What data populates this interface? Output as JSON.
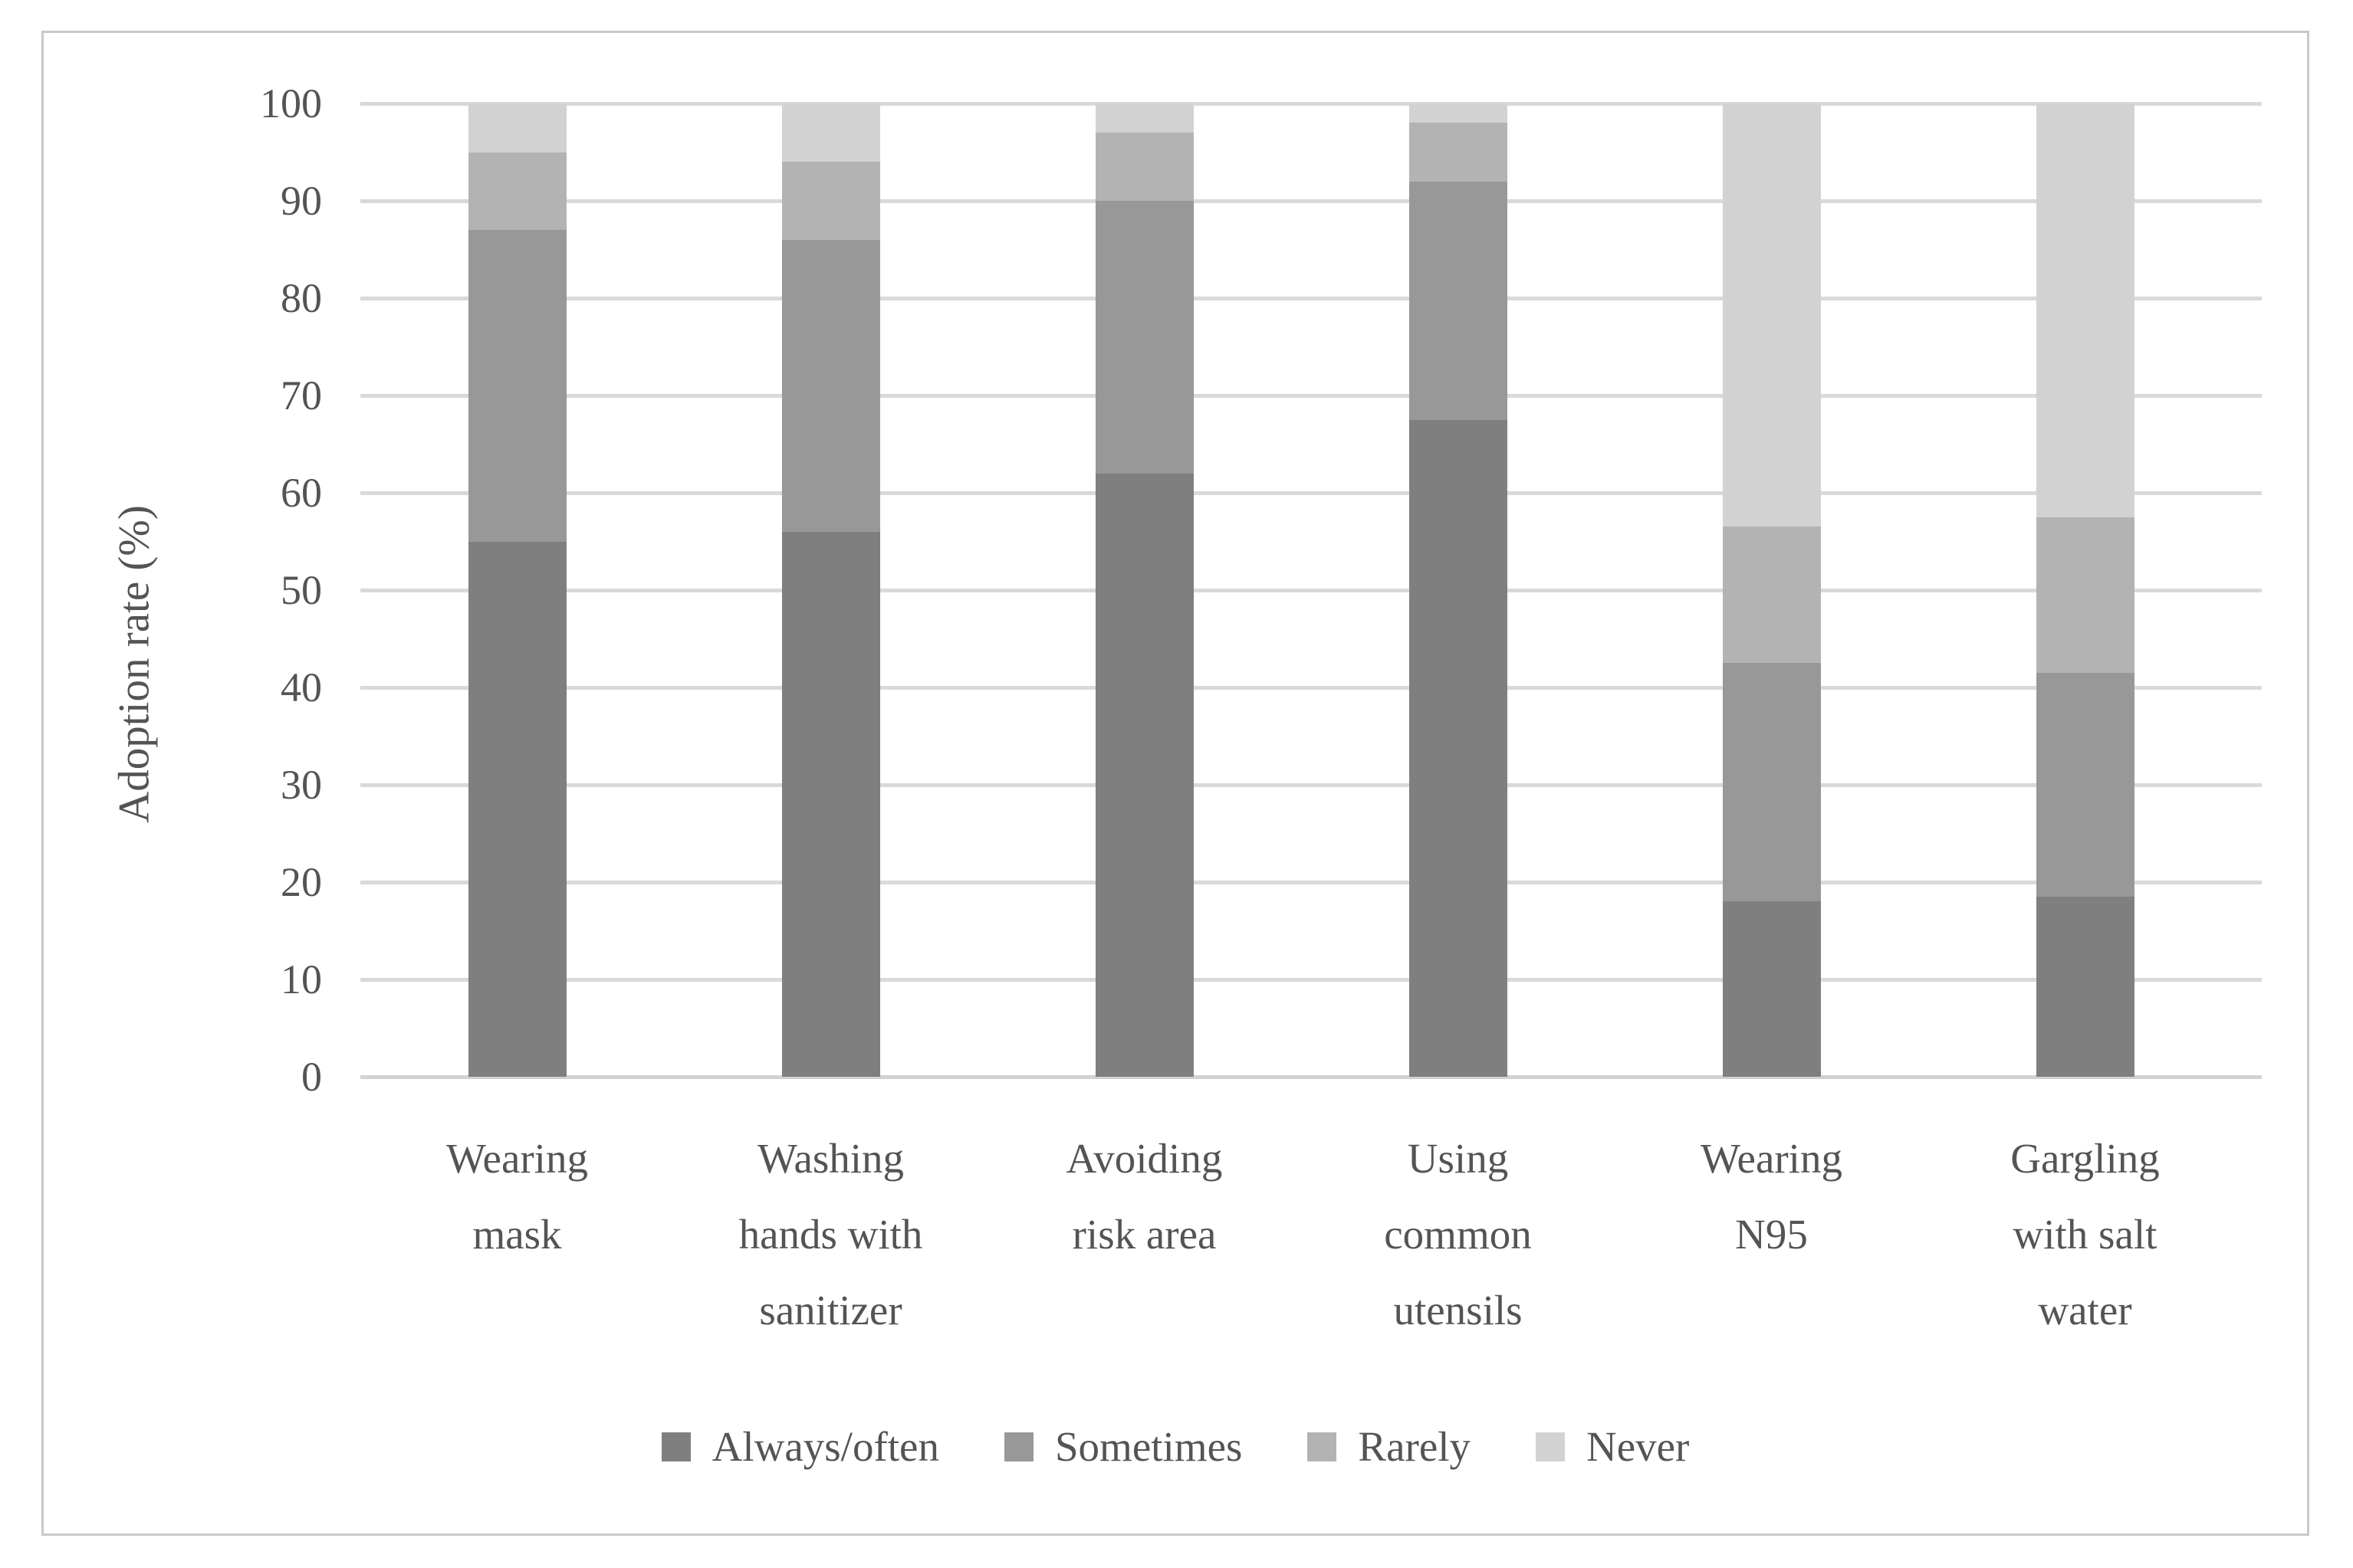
{
  "figure": {
    "y_axis_title": "Adoption rate (%)",
    "x_labels_display": [
      "Wearing\nmask",
      "Washing\nhands with\nsanitizer",
      "Avoiding\nrisk area",
      "Using\ncommon\nutensils",
      "Wearing\nN95",
      "Gargling\nwith salt\nwater"
    ]
  },
  "chart_data": {
    "type": "bar",
    "stacked": true,
    "units": "percent",
    "title": "",
    "xlabel": "",
    "ylabel": "Adoption rate (%)",
    "ylim": [
      0,
      100
    ],
    "yticks": [
      0,
      10,
      20,
      30,
      40,
      50,
      60,
      70,
      80,
      90,
      100
    ],
    "grid": true,
    "legend_position": "bottom",
    "categories": [
      "Wearing mask",
      "Washing hands with sanitizer",
      "Avoiding risk area",
      "Using common utensils",
      "Wearing N95",
      "Gargling with salt water"
    ],
    "series": [
      {
        "name": "Always/often",
        "color": "#7f7f7f",
        "values": [
          55,
          56,
          62,
          67.5,
          18,
          18.5
        ]
      },
      {
        "name": "Sometimes",
        "color": "#989898",
        "values": [
          32,
          30,
          28,
          24.5,
          24.5,
          23
        ]
      },
      {
        "name": "Rarely",
        "color": "#b3b3b3",
        "values": [
          8,
          8,
          7,
          6,
          14,
          16
        ]
      },
      {
        "name": "Never",
        "color": "#d2d2d2",
        "values": [
          5,
          6,
          3,
          2,
          43.5,
          42.5
        ]
      }
    ]
  },
  "colors": {
    "gridline": "#d9d9d9",
    "axis_line": "#d2d2d2",
    "text": "#545454",
    "figure_border": "#c9c9c9",
    "background": "#ffffff"
  }
}
